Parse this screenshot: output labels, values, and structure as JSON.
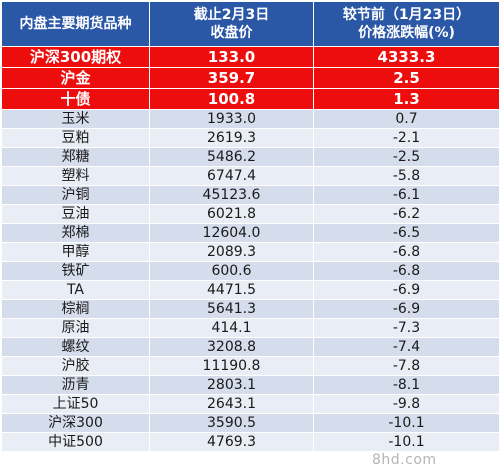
{
  "header": {
    "col1": "内盘主要期货品种",
    "col2_line1": "截止2月3日",
    "col2_line2": "收盘价",
    "col3_line1": "较节前（1月23日）",
    "col3_line2": "价格涨跌幅(%)"
  },
  "highlight_rows": [
    {
      "name": "沪深300期权",
      "price": "133.0",
      "change": "4333.3"
    },
    {
      "name": "沪金",
      "price": "359.7",
      "change": "2.5"
    },
    {
      "name": "十债",
      "price": "100.8",
      "change": "1.3"
    }
  ],
  "rows": [
    {
      "name": "玉米",
      "price": "1933.0",
      "change": "0.7"
    },
    {
      "name": "豆粕",
      "price": "2619.3",
      "change": "-2.1"
    },
    {
      "name": "郑糖",
      "price": "5486.2",
      "change": "-2.5"
    },
    {
      "name": "塑料",
      "price": "6747.4",
      "change": "-5.8"
    },
    {
      "name": "沪铜",
      "price": "45123.6",
      "change": "-6.1"
    },
    {
      "name": "豆油",
      "price": "6021.8",
      "change": "-6.2"
    },
    {
      "name": "郑棉",
      "price": "12604.0",
      "change": "-6.5"
    },
    {
      "name": "甲醇",
      "price": "2089.3",
      "change": "-6.8"
    },
    {
      "name": "铁矿",
      "price": "600.6",
      "change": "-6.8"
    },
    {
      "name": "TA",
      "price": "4471.5",
      "change": "-6.9"
    },
    {
      "name": "棕榈",
      "price": "5641.3",
      "change": "-6.9"
    },
    {
      "name": "原油",
      "price": "414.1",
      "change": "-7.3"
    },
    {
      "name": "螺纹",
      "price": "3208.8",
      "change": "-7.4"
    },
    {
      "name": "沪胶",
      "price": "11190.8",
      "change": "-7.8"
    },
    {
      "name": "沥青",
      "price": "2803.1",
      "change": "-8.1"
    },
    {
      "name": "上证50",
      "price": "2643.1",
      "change": "-9.8"
    },
    {
      "name": "沪深300",
      "price": "3590.5",
      "change": "-10.1"
    },
    {
      "name": "中证500",
      "price": "4769.3",
      "change": "-10.1"
    }
  ],
  "watermark": "8hd.com"
}
